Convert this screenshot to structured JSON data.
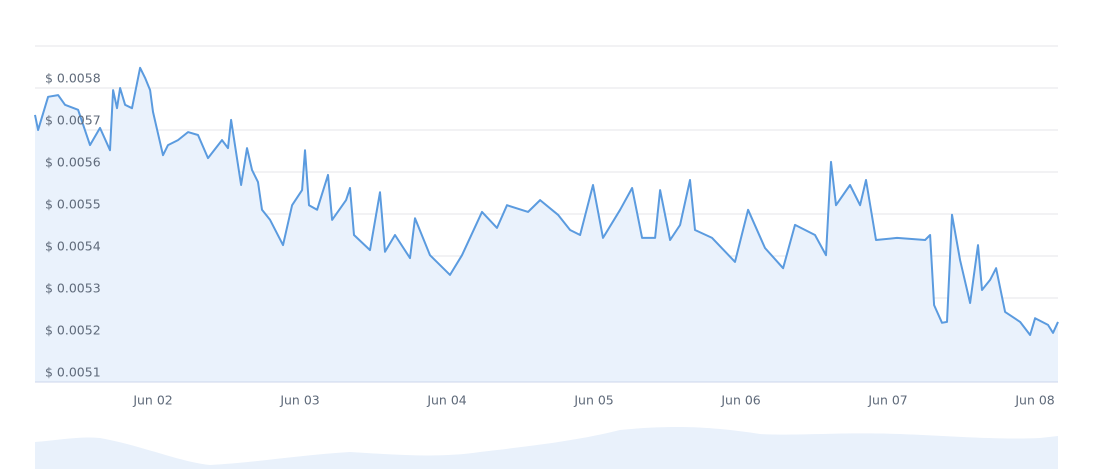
{
  "chart_data": {
    "type": "line",
    "x": [
      1.197,
      1.218,
      1.286,
      1.354,
      1.401,
      1.49,
      1.571,
      1.639,
      1.707,
      1.728,
      1.755,
      1.776,
      1.81,
      1.857,
      1.912,
      1.946,
      1.98,
      2.0,
      2.068,
      2.102,
      2.17,
      2.238,
      2.306,
      2.374,
      2.469,
      2.51,
      2.531,
      2.578,
      2.599,
      2.639,
      2.673,
      2.714,
      2.741,
      2.796,
      2.884,
      2.946,
      3.014,
      3.034,
      3.061,
      3.116,
      3.19,
      3.218,
      3.313,
      3.34,
      3.367,
      3.476,
      3.544,
      3.578,
      3.646,
      3.748,
      3.782,
      3.884,
      4.02,
      4.102,
      4.238,
      4.34,
      4.408,
      4.551,
      4.633,
      4.755,
      4.837,
      4.905,
      4.993,
      5.061,
      5.177,
      5.259,
      5.327,
      5.415,
      5.449,
      5.517,
      5.585,
      5.653,
      5.687,
      5.803,
      5.959,
      6.048,
      6.163,
      6.286,
      6.367,
      6.503,
      6.578,
      6.612,
      6.646,
      6.741,
      6.81,
      6.85,
      6.918,
      7.061,
      7.252,
      7.286,
      7.313,
      7.367,
      7.401,
      7.435,
      7.49,
      7.558,
      7.612,
      7.639,
      7.694,
      7.735,
      7.796,
      7.898,
      7.966,
      8.0,
      8.088,
      8.122,
      8.156
    ],
    "series": [
      {
        "color": "#5b9bdf",
        "values": [
          0.005736,
          0.0057,
          0.005779,
          0.005783,
          0.00576,
          0.005748,
          0.005664,
          0.005705,
          0.005652,
          0.005795,
          0.005752,
          0.0058,
          0.00576,
          0.005752,
          0.005848,
          0.005824,
          0.005795,
          0.005743,
          0.00564,
          0.005664,
          0.005676,
          0.005695,
          0.005688,
          0.005633,
          0.005676,
          0.005657,
          0.005724,
          0.005617,
          0.005569,
          0.005657,
          0.005605,
          0.005576,
          0.00551,
          0.005486,
          0.005426,
          0.005521,
          0.005557,
          0.005652,
          0.005521,
          0.00551,
          0.005593,
          0.005486,
          0.005533,
          0.005562,
          0.00545,
          0.005414,
          0.005552,
          0.00541,
          0.00545,
          0.005395,
          0.00549,
          0.005402,
          0.005355,
          0.005402,
          0.005505,
          0.005467,
          0.005521,
          0.005505,
          0.005533,
          0.005498,
          0.005462,
          0.00545,
          0.005569,
          0.005443,
          0.00551,
          0.005562,
          0.005443,
          0.005443,
          0.005557,
          0.005438,
          0.005474,
          0.005581,
          0.005462,
          0.005443,
          0.005386,
          0.00551,
          0.005419,
          0.005371,
          0.005474,
          0.00545,
          0.005402,
          0.005624,
          0.005521,
          0.005569,
          0.005521,
          0.005581,
          0.005438,
          0.005443,
          0.005438,
          0.00545,
          0.005283,
          0.005241,
          0.005243,
          0.005498,
          0.00539,
          0.005288,
          0.005426,
          0.005319,
          0.005343,
          0.005371,
          0.005267,
          0.005243,
          0.005212,
          0.005252,
          0.005236,
          0.005217,
          0.005243
        ]
      }
    ],
    "xlim": [
      1.197,
      8.156
    ],
    "xticks": [
      {
        "value": 2,
        "label": "Jun 02"
      },
      {
        "value": 3,
        "label": "Jun 03"
      },
      {
        "value": 4,
        "label": "Jun 04"
      },
      {
        "value": 5,
        "label": "Jun 05"
      },
      {
        "value": 6,
        "label": "Jun 06"
      },
      {
        "value": 7,
        "label": "Jun 07"
      },
      {
        "value": 8,
        "label": "Jun 08"
      }
    ],
    "ylim": [
      0.0051,
      0.0059
    ],
    "yticks": [
      {
        "value": 0.0051,
        "label": "$ 0.0051"
      },
      {
        "value": 0.0052,
        "label": "$ 0.0052"
      },
      {
        "value": 0.0053,
        "label": "$ 0.0053"
      },
      {
        "value": 0.0054,
        "label": "$ 0.0054"
      },
      {
        "value": 0.0055,
        "label": "$ 0.0055"
      },
      {
        "value": 0.0056,
        "label": "$ 0.0056"
      },
      {
        "value": 0.0057,
        "label": "$ 0.0057"
      },
      {
        "value": 0.0058,
        "label": "$ 0.0058"
      }
    ],
    "grid": true,
    "area": true
  }
}
